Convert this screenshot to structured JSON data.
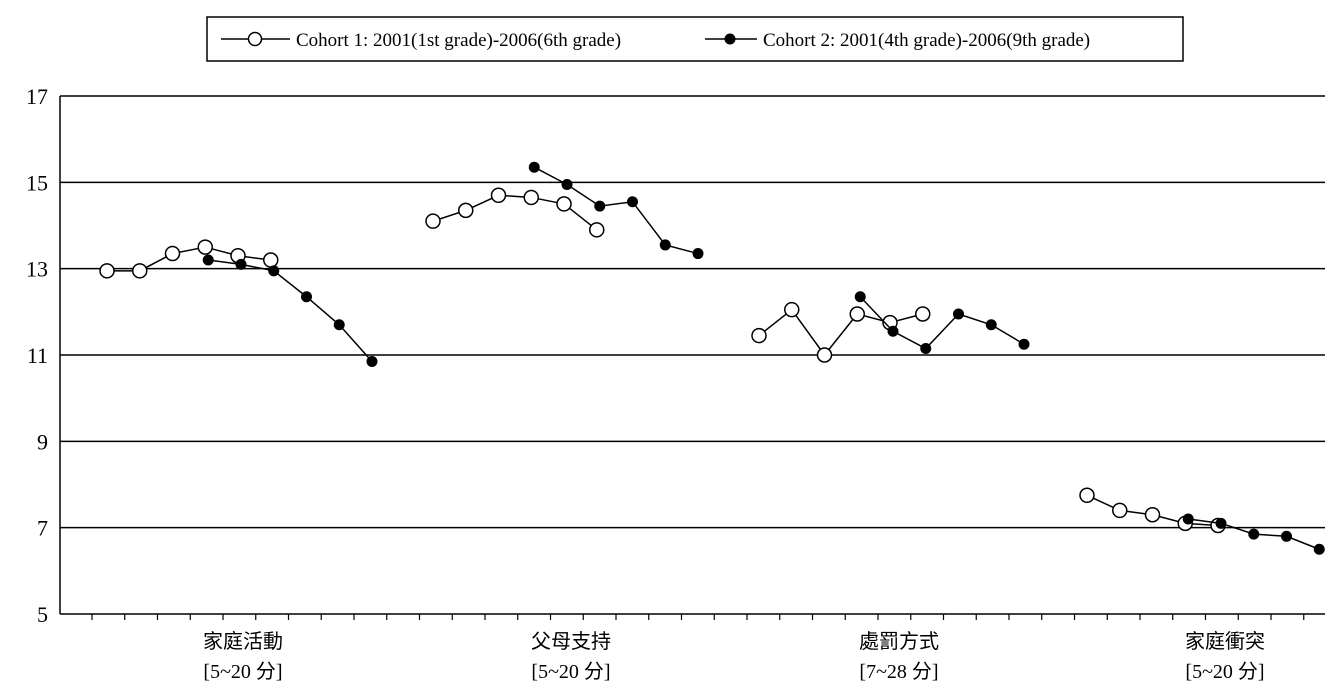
{
  "chart_data": {
    "type": "line",
    "ylim": [
      5,
      17
    ],
    "yticks": [
      5,
      7,
      9,
      11,
      13,
      15,
      17
    ],
    "grid": true,
    "legend_position": "top-center",
    "groups": [
      {
        "label_line1": "家庭活動",
        "label_line2": "[5~20 分]"
      },
      {
        "label_line1": "父母支持",
        "label_line2": "[5~20 分]"
      },
      {
        "label_line1": "處罰方式",
        "label_line2": "[7~28 分]"
      },
      {
        "label_line1": "家庭衝突",
        "label_line2": "[5~20 分]"
      }
    ],
    "series": [
      {
        "name": "Cohort 1: 2001(1st grade)-2006(6th grade)",
        "marker": "open-circle",
        "groups": [
          [
            12.95,
            12.95,
            13.35,
            13.5,
            13.3,
            13.2
          ],
          [
            14.1,
            14.35,
            14.7,
            14.65,
            14.5,
            13.9
          ],
          [
            11.45,
            12.05,
            11.0,
            11.95,
            11.75,
            11.95
          ],
          [
            7.75,
            7.4,
            7.3,
            7.1,
            7.05,
            null
          ]
        ]
      },
      {
        "name": "Cohort 2: 2001(4th grade)-2006(9th grade)",
        "marker": "filled-circle",
        "groups": [
          [
            13.2,
            13.1,
            12.95,
            12.35,
            11.7,
            10.85
          ],
          [
            15.35,
            14.95,
            14.45,
            14.55,
            13.55,
            13.35
          ],
          [
            12.35,
            11.55,
            11.15,
            11.95,
            11.7,
            11.25
          ],
          [
            7.2,
            7.1,
            6.85,
            6.8,
            6.5,
            null
          ]
        ]
      }
    ]
  }
}
